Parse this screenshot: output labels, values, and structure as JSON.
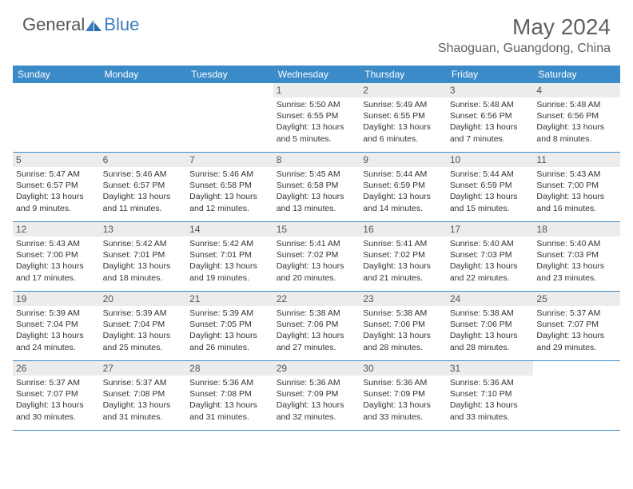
{
  "brand": {
    "part1": "General",
    "part2": "Blue"
  },
  "title": "May 2024",
  "location": "Shaoguan, Guangdong, China",
  "colors": {
    "header_bg": "#3b8bc9",
    "header_text": "#ffffff",
    "daynum_bg": "#ececec",
    "body_text": "#333333",
    "title_text": "#606060",
    "rule": "#3b8bc9",
    "logo_blue": "#3b7bbf"
  },
  "day_labels": [
    "Sunday",
    "Monday",
    "Tuesday",
    "Wednesday",
    "Thursday",
    "Friday",
    "Saturday"
  ],
  "weeks": [
    [
      {
        "n": "",
        "sr": "",
        "ss": "",
        "dl": ""
      },
      {
        "n": "",
        "sr": "",
        "ss": "",
        "dl": ""
      },
      {
        "n": "",
        "sr": "",
        "ss": "",
        "dl": ""
      },
      {
        "n": "1",
        "sr": "Sunrise: 5:50 AM",
        "ss": "Sunset: 6:55 PM",
        "dl": "Daylight: 13 hours and 5 minutes."
      },
      {
        "n": "2",
        "sr": "Sunrise: 5:49 AM",
        "ss": "Sunset: 6:55 PM",
        "dl": "Daylight: 13 hours and 6 minutes."
      },
      {
        "n": "3",
        "sr": "Sunrise: 5:48 AM",
        "ss": "Sunset: 6:56 PM",
        "dl": "Daylight: 13 hours and 7 minutes."
      },
      {
        "n": "4",
        "sr": "Sunrise: 5:48 AM",
        "ss": "Sunset: 6:56 PM",
        "dl": "Daylight: 13 hours and 8 minutes."
      }
    ],
    [
      {
        "n": "5",
        "sr": "Sunrise: 5:47 AM",
        "ss": "Sunset: 6:57 PM",
        "dl": "Daylight: 13 hours and 9 minutes."
      },
      {
        "n": "6",
        "sr": "Sunrise: 5:46 AM",
        "ss": "Sunset: 6:57 PM",
        "dl": "Daylight: 13 hours and 11 minutes."
      },
      {
        "n": "7",
        "sr": "Sunrise: 5:46 AM",
        "ss": "Sunset: 6:58 PM",
        "dl": "Daylight: 13 hours and 12 minutes."
      },
      {
        "n": "8",
        "sr": "Sunrise: 5:45 AM",
        "ss": "Sunset: 6:58 PM",
        "dl": "Daylight: 13 hours and 13 minutes."
      },
      {
        "n": "9",
        "sr": "Sunrise: 5:44 AM",
        "ss": "Sunset: 6:59 PM",
        "dl": "Daylight: 13 hours and 14 minutes."
      },
      {
        "n": "10",
        "sr": "Sunrise: 5:44 AM",
        "ss": "Sunset: 6:59 PM",
        "dl": "Daylight: 13 hours and 15 minutes."
      },
      {
        "n": "11",
        "sr": "Sunrise: 5:43 AM",
        "ss": "Sunset: 7:00 PM",
        "dl": "Daylight: 13 hours and 16 minutes."
      }
    ],
    [
      {
        "n": "12",
        "sr": "Sunrise: 5:43 AM",
        "ss": "Sunset: 7:00 PM",
        "dl": "Daylight: 13 hours and 17 minutes."
      },
      {
        "n": "13",
        "sr": "Sunrise: 5:42 AM",
        "ss": "Sunset: 7:01 PM",
        "dl": "Daylight: 13 hours and 18 minutes."
      },
      {
        "n": "14",
        "sr": "Sunrise: 5:42 AM",
        "ss": "Sunset: 7:01 PM",
        "dl": "Daylight: 13 hours and 19 minutes."
      },
      {
        "n": "15",
        "sr": "Sunrise: 5:41 AM",
        "ss": "Sunset: 7:02 PM",
        "dl": "Daylight: 13 hours and 20 minutes."
      },
      {
        "n": "16",
        "sr": "Sunrise: 5:41 AM",
        "ss": "Sunset: 7:02 PM",
        "dl": "Daylight: 13 hours and 21 minutes."
      },
      {
        "n": "17",
        "sr": "Sunrise: 5:40 AM",
        "ss": "Sunset: 7:03 PM",
        "dl": "Daylight: 13 hours and 22 minutes."
      },
      {
        "n": "18",
        "sr": "Sunrise: 5:40 AM",
        "ss": "Sunset: 7:03 PM",
        "dl": "Daylight: 13 hours and 23 minutes."
      }
    ],
    [
      {
        "n": "19",
        "sr": "Sunrise: 5:39 AM",
        "ss": "Sunset: 7:04 PM",
        "dl": "Daylight: 13 hours and 24 minutes."
      },
      {
        "n": "20",
        "sr": "Sunrise: 5:39 AM",
        "ss": "Sunset: 7:04 PM",
        "dl": "Daylight: 13 hours and 25 minutes."
      },
      {
        "n": "21",
        "sr": "Sunrise: 5:39 AM",
        "ss": "Sunset: 7:05 PM",
        "dl": "Daylight: 13 hours and 26 minutes."
      },
      {
        "n": "22",
        "sr": "Sunrise: 5:38 AM",
        "ss": "Sunset: 7:06 PM",
        "dl": "Daylight: 13 hours and 27 minutes."
      },
      {
        "n": "23",
        "sr": "Sunrise: 5:38 AM",
        "ss": "Sunset: 7:06 PM",
        "dl": "Daylight: 13 hours and 28 minutes."
      },
      {
        "n": "24",
        "sr": "Sunrise: 5:38 AM",
        "ss": "Sunset: 7:06 PM",
        "dl": "Daylight: 13 hours and 28 minutes."
      },
      {
        "n": "25",
        "sr": "Sunrise: 5:37 AM",
        "ss": "Sunset: 7:07 PM",
        "dl": "Daylight: 13 hours and 29 minutes."
      }
    ],
    [
      {
        "n": "26",
        "sr": "Sunrise: 5:37 AM",
        "ss": "Sunset: 7:07 PM",
        "dl": "Daylight: 13 hours and 30 minutes."
      },
      {
        "n": "27",
        "sr": "Sunrise: 5:37 AM",
        "ss": "Sunset: 7:08 PM",
        "dl": "Daylight: 13 hours and 31 minutes."
      },
      {
        "n": "28",
        "sr": "Sunrise: 5:36 AM",
        "ss": "Sunset: 7:08 PM",
        "dl": "Daylight: 13 hours and 31 minutes."
      },
      {
        "n": "29",
        "sr": "Sunrise: 5:36 AM",
        "ss": "Sunset: 7:09 PM",
        "dl": "Daylight: 13 hours and 32 minutes."
      },
      {
        "n": "30",
        "sr": "Sunrise: 5:36 AM",
        "ss": "Sunset: 7:09 PM",
        "dl": "Daylight: 13 hours and 33 minutes."
      },
      {
        "n": "31",
        "sr": "Sunrise: 5:36 AM",
        "ss": "Sunset: 7:10 PM",
        "dl": "Daylight: 13 hours and 33 minutes."
      },
      {
        "n": "",
        "sr": "",
        "ss": "",
        "dl": ""
      }
    ]
  ]
}
